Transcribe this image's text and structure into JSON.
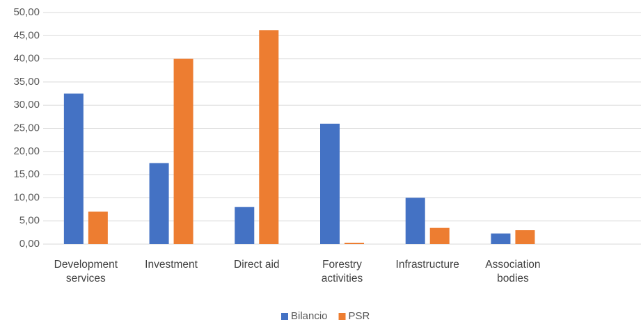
{
  "chart_data": {
    "type": "bar",
    "categories": [
      "Development services",
      "Investment",
      "Direct aid",
      "Forestry activities",
      "Infrastructure",
      "Association bodies",
      null
    ],
    "series": [
      {
        "name": "Bilancio",
        "color": "#4472c4",
        "values": [
          32.5,
          17.5,
          8.0,
          26.0,
          10.0,
          2.3,
          null
        ]
      },
      {
        "name": "PSR",
        "color": "#ed7d31",
        "values": [
          7.0,
          40.0,
          46.2,
          0.3,
          3.5,
          3.0,
          null
        ]
      }
    ],
    "ylim": [
      0,
      50
    ],
    "yticks": [
      {
        "value": 0,
        "label": "0,00"
      },
      {
        "value": 5,
        "label": "5,00"
      },
      {
        "value": 10,
        "label": "10,00"
      },
      {
        "value": 15,
        "label": "15,00"
      },
      {
        "value": 20,
        "label": "20,00"
      },
      {
        "value": 25,
        "label": "25,00"
      },
      {
        "value": 30,
        "label": "30,00"
      },
      {
        "value": 35,
        "label": "35,00"
      },
      {
        "value": 40,
        "label": "40,00"
      },
      {
        "value": 45,
        "label": "45,00"
      },
      {
        "value": 50,
        "label": "50,00"
      }
    ],
    "grid": true,
    "legend": "bottom"
  }
}
